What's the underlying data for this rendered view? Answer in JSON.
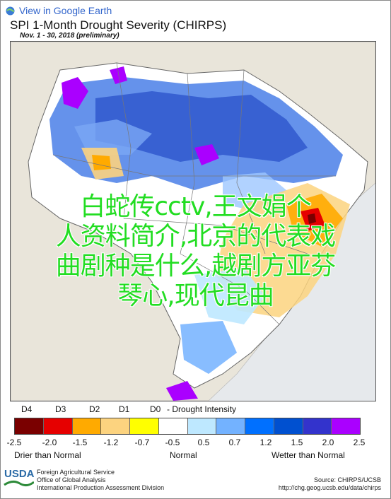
{
  "header": {
    "ge_link": "View in Google Earth",
    "title": "SPI 1-Month Drought Severity (CHIRPS)",
    "subtitle": "Nov. 1 - 30, 2018 (preliminary)"
  },
  "overlay": {
    "lines": [
      "白蛇传cctv,王文娟个",
      "人资料简介,北京的代表戏",
      "曲剧种是什么,越剧方亚芬",
      "琴心,现代昆曲"
    ]
  },
  "legend": {
    "drought_codes": [
      "D4",
      "D3",
      "D2",
      "D1",
      "D0"
    ],
    "drought_caption": "- Drought Intensity",
    "colors": [
      "#7a0000",
      "#e60000",
      "#ffaa00",
      "#fcd37f",
      "#ffff00",
      "#ffffff",
      "#bee8ff",
      "#73b2ff",
      "#0070ff",
      "#0050d0",
      "#3333cc",
      "#aa00ff"
    ],
    "ticks": [
      "-2.5",
      "-2.0",
      "-1.5",
      "-1.2",
      "-0.7",
      "-0.5",
      "0.5",
      "0.7",
      "1.2",
      "1.5",
      "2.0",
      "2.5"
    ],
    "left_label": "Drier than Normal",
    "center_label": "Normal",
    "right_label": "Wetter than Normal"
  },
  "footer": {
    "logo": "USDA",
    "agency_lines": [
      "Foreign Agricultural Service",
      "Office of Global Analysis",
      "International Production Assessment Division"
    ],
    "source": "Source: CHIRPS/UCSB",
    "url": "http://chg.geog.ucsb.edu/data/chirps"
  }
}
